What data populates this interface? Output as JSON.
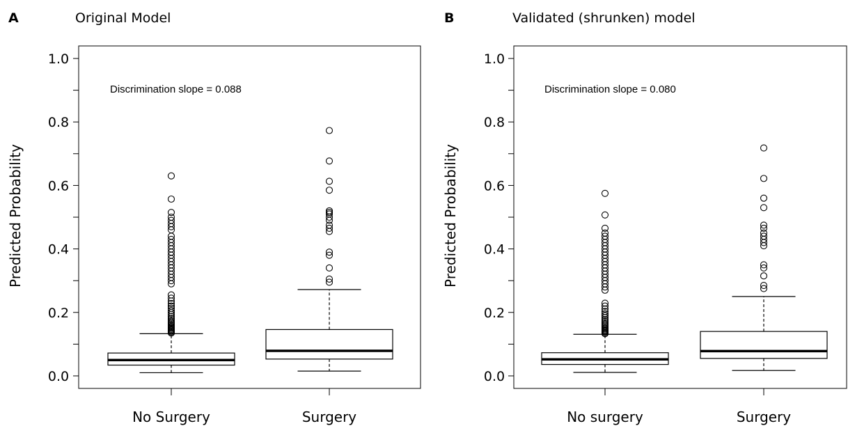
{
  "chart_data": [
    {
      "type": "box",
      "panel_letter": "A",
      "title": "Original Model",
      "ylabel": "Predicted Probability",
      "ylim": [
        0,
        1
      ],
      "yticks": [
        "0.0",
        "0.2",
        "0.4",
        "0.6",
        "0.8",
        "1.0"
      ],
      "annotation": "Discrimination slope = 0.088",
      "categories": [
        "No Surgery",
        "Surgery"
      ],
      "boxes": [
        {
          "min": 0.01,
          "q1": 0.034,
          "median": 0.05,
          "q3": 0.072,
          "max": 0.133,
          "outliers": [
            0.135,
            0.138,
            0.141,
            0.144,
            0.147,
            0.15,
            0.153,
            0.156,
            0.16,
            0.164,
            0.168,
            0.172,
            0.177,
            0.182,
            0.188,
            0.194,
            0.2,
            0.206,
            0.213,
            0.22,
            0.228,
            0.236,
            0.245,
            0.255,
            0.29,
            0.3,
            0.31,
            0.32,
            0.33,
            0.34,
            0.35,
            0.36,
            0.37,
            0.38,
            0.39,
            0.4,
            0.41,
            0.42,
            0.43,
            0.44,
            0.46,
            0.47,
            0.48,
            0.49,
            0.5,
            0.515,
            0.557,
            0.63
          ]
        },
        {
          "min": 0.015,
          "q1": 0.053,
          "median": 0.079,
          "q3": 0.146,
          "max": 0.272,
          "outliers": [
            0.295,
            0.305,
            0.34,
            0.38,
            0.39,
            0.455,
            0.465,
            0.475,
            0.49,
            0.5,
            0.51,
            0.515,
            0.52,
            0.585,
            0.613,
            0.677,
            0.773
          ]
        }
      ]
    },
    {
      "type": "box",
      "panel_letter": "B",
      "title": "Validated (shrunken) model",
      "ylabel": "Predicted Probability",
      "ylim": [
        0,
        1
      ],
      "yticks": [
        "0.0",
        "0.2",
        "0.4",
        "0.6",
        "0.8",
        "1.0"
      ],
      "annotation": "Discrimination slope = 0.080",
      "categories": [
        "No surgery",
        "Surgery"
      ],
      "boxes": [
        {
          "min": 0.011,
          "q1": 0.036,
          "median": 0.052,
          "q3": 0.073,
          "max": 0.131,
          "outliers": [
            0.133,
            0.136,
            0.139,
            0.142,
            0.145,
            0.148,
            0.151,
            0.155,
            0.159,
            0.163,
            0.168,
            0.173,
            0.178,
            0.184,
            0.19,
            0.196,
            0.203,
            0.211,
            0.22,
            0.229,
            0.27,
            0.28,
            0.29,
            0.3,
            0.31,
            0.32,
            0.33,
            0.34,
            0.35,
            0.36,
            0.37,
            0.38,
            0.39,
            0.4,
            0.41,
            0.42,
            0.43,
            0.44,
            0.45,
            0.465,
            0.507,
            0.575
          ]
        },
        {
          "min": 0.017,
          "q1": 0.055,
          "median": 0.078,
          "q3": 0.14,
          "max": 0.25,
          "outliers": [
            0.275,
            0.285,
            0.315,
            0.34,
            0.35,
            0.41,
            0.42,
            0.43,
            0.44,
            0.45,
            0.465,
            0.475,
            0.53,
            0.56,
            0.622,
            0.718
          ]
        }
      ]
    }
  ]
}
